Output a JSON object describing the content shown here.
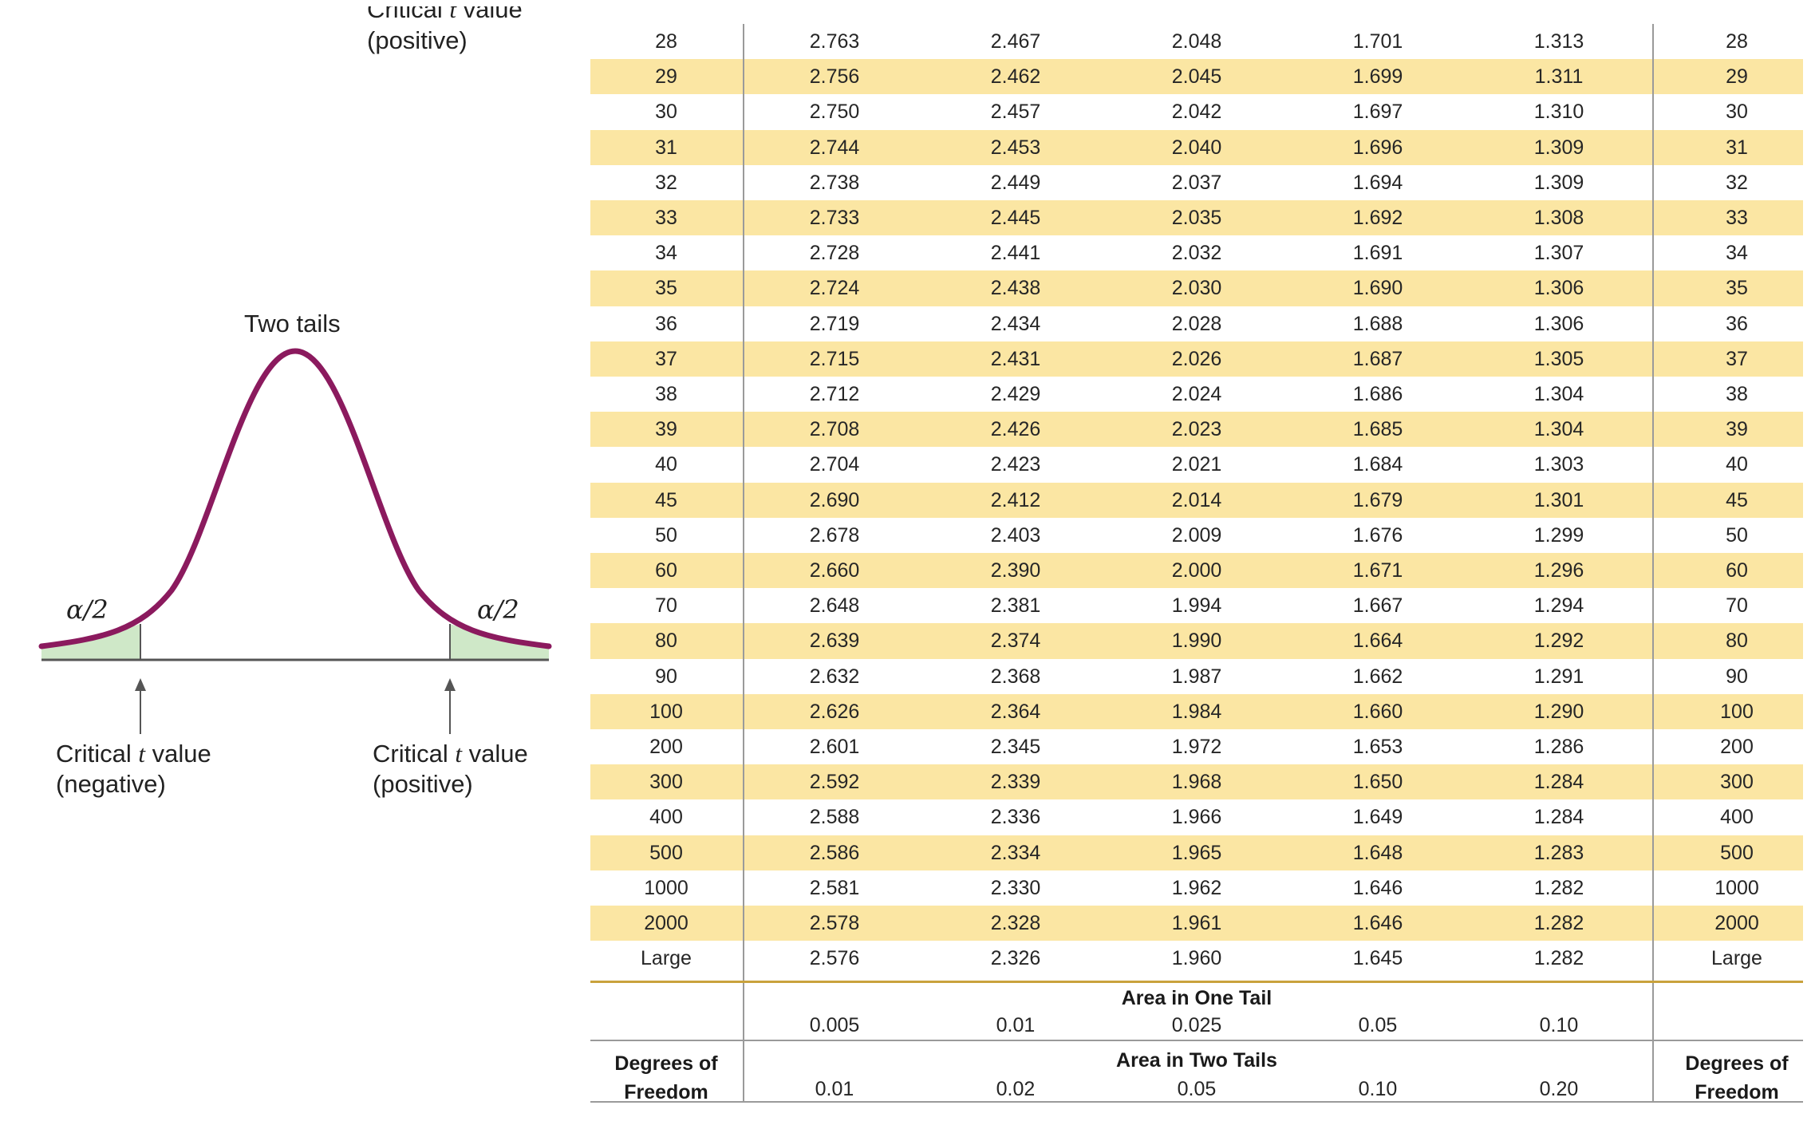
{
  "figure": {
    "title": "Two tails",
    "alpha_left": "α/2",
    "alpha_right": "α/2",
    "crit_top_line1": "Critical ",
    "crit_top_t": "t",
    "crit_top_line1_end": " value",
    "crit_top_line2": "(positive)",
    "crit_neg_line1": "Critical ",
    "crit_neg_t": "t",
    "crit_neg_line1_end": " value",
    "crit_neg_line2": "(negative)",
    "crit_pos_line1": "Critical ",
    "crit_pos_t": "t",
    "crit_pos_line1_end": " value",
    "crit_pos_line2": "(positive)",
    "curve_color": "#8b1a5e",
    "tail_fill": "#cfe8c8"
  },
  "table": {
    "rows": [
      {
        "df": "28",
        "v": [
          "2.763",
          "2.467",
          "2.048",
          "1.701",
          "1.313"
        ]
      },
      {
        "df": "29",
        "v": [
          "2.756",
          "2.462",
          "2.045",
          "1.699",
          "1.311"
        ]
      },
      {
        "df": "30",
        "v": [
          "2.750",
          "2.457",
          "2.042",
          "1.697",
          "1.310"
        ]
      },
      {
        "df": "31",
        "v": [
          "2.744",
          "2.453",
          "2.040",
          "1.696",
          "1.309"
        ]
      },
      {
        "df": "32",
        "v": [
          "2.738",
          "2.449",
          "2.037",
          "1.694",
          "1.309"
        ]
      },
      {
        "df": "33",
        "v": [
          "2.733",
          "2.445",
          "2.035",
          "1.692",
          "1.308"
        ]
      },
      {
        "df": "34",
        "v": [
          "2.728",
          "2.441",
          "2.032",
          "1.691",
          "1.307"
        ]
      },
      {
        "df": "35",
        "v": [
          "2.724",
          "2.438",
          "2.030",
          "1.690",
          "1.306"
        ]
      },
      {
        "df": "36",
        "v": [
          "2.719",
          "2.434",
          "2.028",
          "1.688",
          "1.306"
        ]
      },
      {
        "df": "37",
        "v": [
          "2.715",
          "2.431",
          "2.026",
          "1.687",
          "1.305"
        ]
      },
      {
        "df": "38",
        "v": [
          "2.712",
          "2.429",
          "2.024",
          "1.686",
          "1.304"
        ]
      },
      {
        "df": "39",
        "v": [
          "2.708",
          "2.426",
          "2.023",
          "1.685",
          "1.304"
        ]
      },
      {
        "df": "40",
        "v": [
          "2.704",
          "2.423",
          "2.021",
          "1.684",
          "1.303"
        ]
      },
      {
        "df": "45",
        "v": [
          "2.690",
          "2.412",
          "2.014",
          "1.679",
          "1.301"
        ]
      },
      {
        "df": "50",
        "v": [
          "2.678",
          "2.403",
          "2.009",
          "1.676",
          "1.299"
        ]
      },
      {
        "df": "60",
        "v": [
          "2.660",
          "2.390",
          "2.000",
          "1.671",
          "1.296"
        ]
      },
      {
        "df": "70",
        "v": [
          "2.648",
          "2.381",
          "1.994",
          "1.667",
          "1.294"
        ]
      },
      {
        "df": "80",
        "v": [
          "2.639",
          "2.374",
          "1.990",
          "1.664",
          "1.292"
        ]
      },
      {
        "df": "90",
        "v": [
          "2.632",
          "2.368",
          "1.987",
          "1.662",
          "1.291"
        ]
      },
      {
        "df": "100",
        "v": [
          "2.626",
          "2.364",
          "1.984",
          "1.660",
          "1.290"
        ]
      },
      {
        "df": "200",
        "v": [
          "2.601",
          "2.345",
          "1.972",
          "1.653",
          "1.286"
        ]
      },
      {
        "df": "300",
        "v": [
          "2.592",
          "2.339",
          "1.968",
          "1.650",
          "1.284"
        ]
      },
      {
        "df": "400",
        "v": [
          "2.588",
          "2.336",
          "1.966",
          "1.649",
          "1.284"
        ]
      },
      {
        "df": "500",
        "v": [
          "2.586",
          "2.334",
          "1.965",
          "1.648",
          "1.283"
        ]
      },
      {
        "df": "1000",
        "v": [
          "2.581",
          "2.330",
          "1.962",
          "1.646",
          "1.282"
        ]
      },
      {
        "df": "2000",
        "v": [
          "2.578",
          "2.328",
          "1.961",
          "1.646",
          "1.282"
        ]
      },
      {
        "df": "Large",
        "v": [
          "2.576",
          "2.326",
          "1.960",
          "1.645",
          "1.282"
        ]
      }
    ],
    "one_tail_title": "Area in One Tail",
    "one_tail": [
      "0.005",
      "0.01",
      "0.025",
      "0.05",
      "0.10"
    ],
    "two_tail_title": "Area in Two Tails",
    "two_tail": [
      "0.01",
      "0.02",
      "0.05",
      "0.10",
      "0.20"
    ],
    "dof_line1": "Degrees of",
    "dof_line2": "Freedom",
    "band_color": "#fbe6a3",
    "rule_color": "#c9a23c"
  }
}
